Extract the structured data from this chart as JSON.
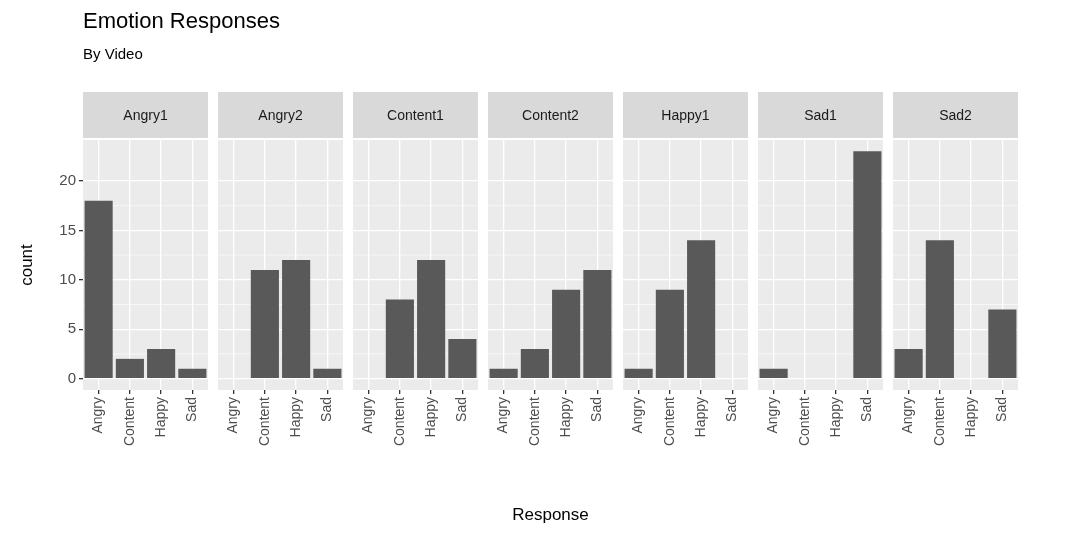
{
  "chart_data": [
    {
      "type": "other",
      "title": "Emotion Responses",
      "subtitle": "By Video"
    },
    {
      "type": "bar",
      "title": "Angry1",
      "categories": [
        "Angry",
        "Content",
        "Happy",
        "Sad"
      ],
      "values": [
        18,
        2,
        3,
        1
      ],
      "color": "#595959",
      "ylim": [
        -1.15,
        24.15
      ],
      "yticks": [
        0,
        5,
        10,
        15,
        20
      ],
      "grid": true,
      "ylabel": "count"
    },
    {
      "type": "bar",
      "title": "Angry2",
      "categories": [
        "Angry",
        "Content",
        "Happy",
        "Sad"
      ],
      "values": [
        null,
        11,
        12,
        1
      ],
      "color": "#595959",
      "ylim": [
        -1.15,
        24.15
      ],
      "yticks": [
        0,
        5,
        10,
        15,
        20
      ],
      "grid": true,
      "tick_labels": "x"
    },
    {
      "type": "bar",
      "title": "Content1",
      "categories": [
        "Angry",
        "Content",
        "Happy",
        "Sad"
      ],
      "values": [
        null,
        8,
        12,
        4
      ],
      "color": "#595959",
      "ylim": [
        -1.15,
        24.15
      ],
      "yticks": [
        0,
        5,
        10,
        15,
        20
      ],
      "grid": true,
      "tick_labels": "x"
    },
    {
      "type": "bar",
      "title": "Content2",
      "categories": [
        "Angry",
        "Content",
        "Happy",
        "Sad"
      ],
      "values": [
        1,
        3,
        9,
        11
      ],
      "color": "#595959",
      "ylim": [
        -1.15,
        24.15
      ],
      "yticks": [
        0,
        5,
        10,
        15,
        20
      ],
      "grid": true,
      "tick_labels": "x",
      "xlabel": "Response"
    },
    {
      "type": "bar",
      "title": "Happy1",
      "categories": [
        "Angry",
        "Content",
        "Happy",
        "Sad"
      ],
      "values": [
        1,
        9,
        14,
        null
      ],
      "color": "#595959",
      "ylim": [
        -1.15,
        24.15
      ],
      "yticks": [
        0,
        5,
        10,
        15,
        20
      ],
      "grid": true,
      "tick_labels": "x"
    },
    {
      "type": "bar",
      "title": "Sad1",
      "categories": [
        "Angry",
        "Content",
        "Happy",
        "Sad"
      ],
      "values": [
        1,
        null,
        null,
        23
      ],
      "color": "#595959",
      "ylim": [
        -1.15,
        24.15
      ],
      "yticks": [
        0,
        5,
        10,
        15,
        20
      ],
      "grid": true,
      "tick_labels": "x"
    },
    {
      "type": "bar",
      "title": "Sad2",
      "categories": [
        "Angry",
        "Content",
        "Happy",
        "Sad"
      ],
      "values": [
        3,
        14,
        null,
        7
      ],
      "color": "#595959",
      "ylim": [
        -1.15,
        24.15
      ],
      "yticks": [
        0,
        5,
        10,
        15,
        20
      ],
      "grid": true,
      "tick_labels": "x"
    }
  ]
}
